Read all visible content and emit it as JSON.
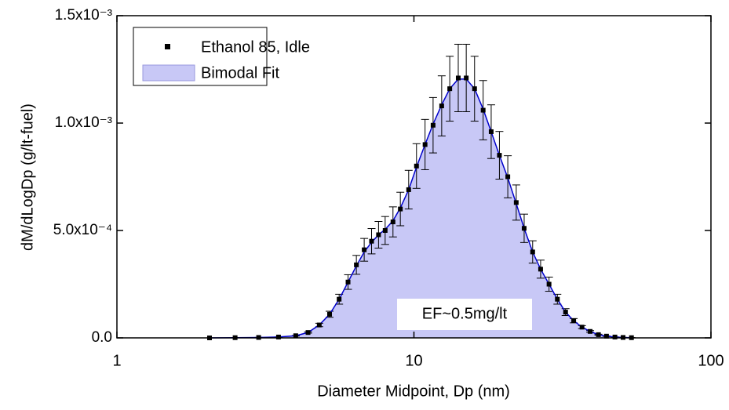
{
  "chart_data": {
    "type": "scatter",
    "x_label": "Diameter Midpoint, Dp (nm)",
    "y_label": "dM/dLogDp (g/lt-fuel)",
    "annotation": "EF~0.5mg/lt",
    "log_x": true,
    "xlim": [
      1,
      100
    ],
    "xticks": [
      1,
      10,
      100
    ],
    "ylim": [
      0,
      0.0015
    ],
    "yticks": [
      {
        "value": 0,
        "label": "0.0"
      },
      {
        "value": 0.0005,
        "label": "5.0x10⁻⁴"
      },
      {
        "value": 0.001,
        "label": "1.0x10⁻³"
      },
      {
        "value": 0.0015,
        "label": "1.5x10⁻³"
      }
    ],
    "legend": "upper-left",
    "series": [
      {
        "name": "Ethanol 85, Idle",
        "color": "#000000",
        "x": [
          2.05,
          2.5,
          3.0,
          3.5,
          4.0,
          4.4,
          4.8,
          5.2,
          5.6,
          6.0,
          6.4,
          6.8,
          7.2,
          7.6,
          8.0,
          8.5,
          9.0,
          9.6,
          10.2,
          10.9,
          11.6,
          12.4,
          13.2,
          14.1,
          15.0,
          16.0,
          17.1,
          18.2,
          19.4,
          20.7,
          22.1,
          23.5,
          25.1,
          26.7,
          28.5,
          30.4,
          32.4,
          34.5,
          36.8,
          39.2,
          41.8,
          44.5,
          47.5,
          50.6,
          54.0
        ],
        "values": [
          0,
          1e-06,
          2e-06,
          4e-06,
          1e-05,
          2.5e-05,
          6e-05,
          0.00011,
          0.00018,
          0.00026,
          0.00034,
          0.00041,
          0.00045,
          0.00048,
          0.0005,
          0.00054,
          0.0006,
          0.00069,
          0.0008,
          0.0009,
          0.00099,
          0.00108,
          0.00116,
          0.00121,
          0.00121,
          0.00116,
          0.00106,
          0.00096,
          0.00085,
          0.00075,
          0.00063,
          0.00051,
          0.0004,
          0.00032,
          0.00025,
          0.00018,
          0.00012,
          8e-05,
          5e-05,
          3e-05,
          1.5e-05,
          8e-06,
          4e-06,
          2e-06,
          1e-06
        ],
        "errors": [
          0,
          1e-07,
          3e-07,
          5e-07,
          1.3e-06,
          3e-06,
          8e-06,
          1.4e-05,
          2.3e-05,
          3.4e-05,
          4.4e-05,
          5.3e-05,
          5.9e-05,
          6.2e-05,
          6.5e-05,
          7e-05,
          7.8e-05,
          9e-05,
          0.000104,
          0.000117,
          0.000129,
          0.00014,
          0.000151,
          0.000157,
          0.000157,
          0.000151,
          0.000138,
          0.000125,
          0.000111,
          9.8e-05,
          8.2e-05,
          6.6e-05,
          5.2e-05,
          4.2e-05,
          3.3e-05,
          2.3e-05,
          1.6e-05,
          1e-05,
          7e-06,
          4e-06,
          2e-06,
          1e-06,
          5e-07,
          3e-07,
          1e-07
        ]
      },
      {
        "name": "Bimodal Fit",
        "color": "#0000cc",
        "fill": "#c8c8f6",
        "x": [
          2.05,
          2.5,
          3.0,
          3.5,
          4.0,
          4.4,
          4.8,
          5.2,
          5.6,
          6.0,
          6.4,
          6.8,
          7.2,
          7.6,
          8.0,
          8.5,
          9.0,
          9.6,
          10.2,
          10.9,
          11.6,
          12.4,
          13.2,
          14.1,
          15.0,
          16.0,
          17.1,
          18.2,
          19.4,
          20.7,
          22.1,
          23.5,
          25.1,
          26.7,
          28.5,
          30.4,
          32.4,
          34.5,
          36.8,
          39.2,
          41.8,
          44.5,
          47.5,
          50.6,
          54.0
        ],
        "values": [
          0,
          1e-06,
          2e-06,
          4e-06,
          1e-05,
          2.5e-05,
          6e-05,
          0.00011,
          0.00018,
          0.00026,
          0.000335,
          0.0004,
          0.000445,
          0.00048,
          0.000505,
          0.000545,
          0.000605,
          0.00069,
          0.000795,
          0.0009,
          0.000995,
          0.001085,
          0.00116,
          0.001205,
          0.001205,
          0.00116,
          0.001065,
          0.00096,
          0.00085,
          0.000745,
          0.000625,
          0.00051,
          0.0004,
          0.00032,
          0.00025,
          0.00018,
          0.00012,
          8e-05,
          5e-05,
          3e-05,
          1.5e-05,
          8e-06,
          4e-06,
          2e-06,
          1e-06
        ]
      }
    ]
  }
}
